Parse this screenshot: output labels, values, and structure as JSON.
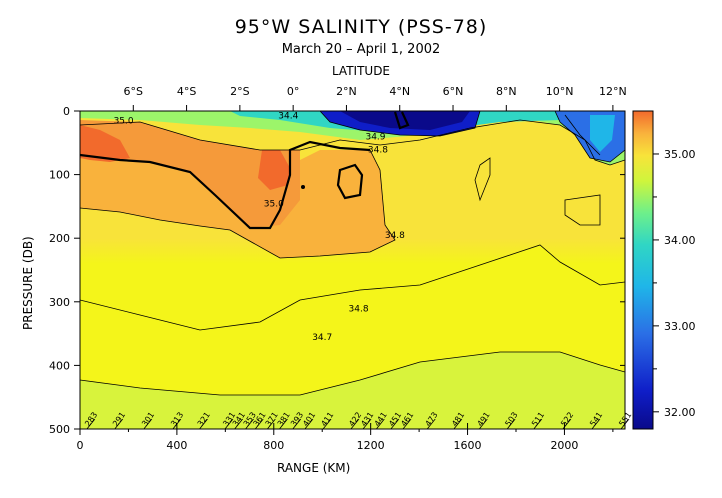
{
  "chart_data": {
    "type": "heatmap",
    "title": "95°W SALINITY (PSS-78)",
    "subtitle": "March 20 – April 1, 2002",
    "top_axis_label": "LATITUDE",
    "xlabel": "RANGE (KM)",
    "ylabel": "PRESSURE (DB)",
    "xlim": [
      0,
      2250
    ],
    "ylim": [
      500,
      0
    ],
    "x_ticks": [
      0,
      400,
      800,
      1200,
      1600,
      2000
    ],
    "x_minor_ticks": [
      200,
      600,
      1000,
      1400,
      1800,
      2200
    ],
    "y_ticks": [
      0,
      100,
      200,
      300,
      400,
      500
    ],
    "latitude_ticks": [
      {
        "label": "6°S",
        "km": 220
      },
      {
        "label": "4°S",
        "km": 440
      },
      {
        "label": "2°S",
        "km": 660
      },
      {
        "label": "0°",
        "km": 880
      },
      {
        "label": "2°N",
        "km": 1100
      },
      {
        "label": "4°N",
        "km": 1320
      },
      {
        "label": "6°N",
        "km": 1540
      },
      {
        "label": "8°N",
        "km": 1760
      },
      {
        "label": "10°N",
        "km": 1980
      },
      {
        "label": "12°N",
        "km": 2200
      }
    ],
    "colorbar": {
      "range": [
        31.8,
        35.5
      ],
      "tick_labels": [
        "32.00",
        "33.00",
        "34.00",
        "35.00"
      ],
      "tick_values": [
        32.0,
        33.0,
        34.0,
        35.0
      ]
    },
    "contour_labels": [
      {
        "text": "35.0",
        "km": 180,
        "db": 20
      },
      {
        "text": "34.4",
        "km": 860,
        "db": 12
      },
      {
        "text": "34.9",
        "km": 1220,
        "db": 45
      },
      {
        "text": "34.8",
        "km": 1230,
        "db": 65
      },
      {
        "text": "35.0",
        "km": 800,
        "db": 150
      },
      {
        "text": "34.8",
        "km": 1300,
        "db": 200
      },
      {
        "text": "34.8",
        "km": 1150,
        "db": 315
      },
      {
        "text": "34.7",
        "km": 1000,
        "db": 360
      }
    ],
    "stations": [
      "283",
      "291",
      "301",
      "313",
      "321",
      "331",
      "341",
      "353",
      "361",
      "371",
      "381",
      "393",
      "401",
      "411",
      "422",
      "431",
      "441",
      "451",
      "461",
      "473",
      "481",
      "491",
      "503",
      "511",
      "522",
      "541",
      "551"
    ],
    "station_km": [
      45,
      160,
      280,
      400,
      510,
      615,
      655,
      700,
      740,
      790,
      840,
      895,
      945,
      1020,
      1135,
      1185,
      1240,
      1300,
      1350,
      1450,
      1560,
      1665,
      1780,
      1890,
      2010,
      2130,
      2250
    ],
    "fields": {
      "background": [
        {
          "pressure_db": 0,
          "salinity": 34.85
        },
        {
          "pressure_db": 120,
          "salinity": 34.85
        },
        {
          "pressure_db": 220,
          "salinity": 34.75
        },
        {
          "pressure_db": 320,
          "salinity": 34.7
        },
        {
          "pressure_db": 420,
          "salinity": 34.62
        },
        {
          "pressure_db": 500,
          "salinity": 34.58
        }
      ],
      "colors": {
        "35.3": "#f26a2c",
        "35.1": "#f59a3a",
        "35.0": "#f9b23c",
        "34.9": "#fbc93d",
        "34.8": "#f8e33a",
        "34.7": "#f4f51a",
        "34.6": "#d8f33c",
        "34.4": "#9cf56a",
        "34.0": "#30d6c4",
        "33.0": "#2b6fe6",
        "32.0": "#0a0a8a"
      }
    }
  }
}
